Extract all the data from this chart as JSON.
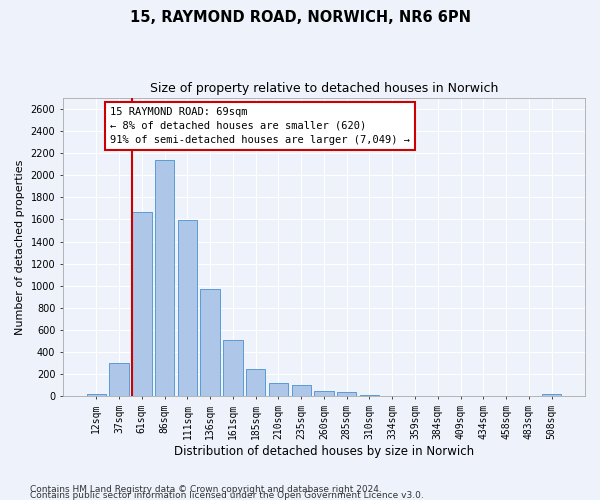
{
  "title": "15, RAYMOND ROAD, NORWICH, NR6 6PN",
  "subtitle": "Size of property relative to detached houses in Norwich",
  "xlabel": "Distribution of detached houses by size in Norwich",
  "ylabel": "Number of detached properties",
  "categories": [
    "12sqm",
    "37sqm",
    "61sqm",
    "86sqm",
    "111sqm",
    "136sqm",
    "161sqm",
    "185sqm",
    "210sqm",
    "235sqm",
    "260sqm",
    "285sqm",
    "310sqm",
    "334sqm",
    "359sqm",
    "384sqm",
    "409sqm",
    "434sqm",
    "458sqm",
    "483sqm",
    "508sqm"
  ],
  "values": [
    20,
    300,
    1670,
    2140,
    1595,
    970,
    510,
    245,
    120,
    100,
    50,
    35,
    10,
    5,
    5,
    3,
    3,
    2,
    2,
    2,
    20
  ],
  "bar_color": "#aec6e8",
  "bar_edge_color": "#5b9bd5",
  "vline_pos": 1.575,
  "property_line_label": "15 RAYMOND ROAD: 69sqm",
  "annotation_line1": "← 8% of detached houses are smaller (620)",
  "annotation_line2": "91% of semi-detached houses are larger (7,049) →",
  "vline_color": "#cc0000",
  "background_color": "#edf2fb",
  "grid_color": "#ffffff",
  "ylim": [
    0,
    2700
  ],
  "yticks": [
    0,
    200,
    400,
    600,
    800,
    1000,
    1200,
    1400,
    1600,
    1800,
    2000,
    2200,
    2400,
    2600
  ],
  "footnote1": "Contains HM Land Registry data © Crown copyright and database right 2024.",
  "footnote2": "Contains public sector information licensed under the Open Government Licence v3.0.",
  "title_fontsize": 10.5,
  "subtitle_fontsize": 9,
  "xlabel_fontsize": 8.5,
  "ylabel_fontsize": 8,
  "tick_fontsize": 7,
  "footnote_fontsize": 6.5,
  "annot_fontsize": 7.5
}
